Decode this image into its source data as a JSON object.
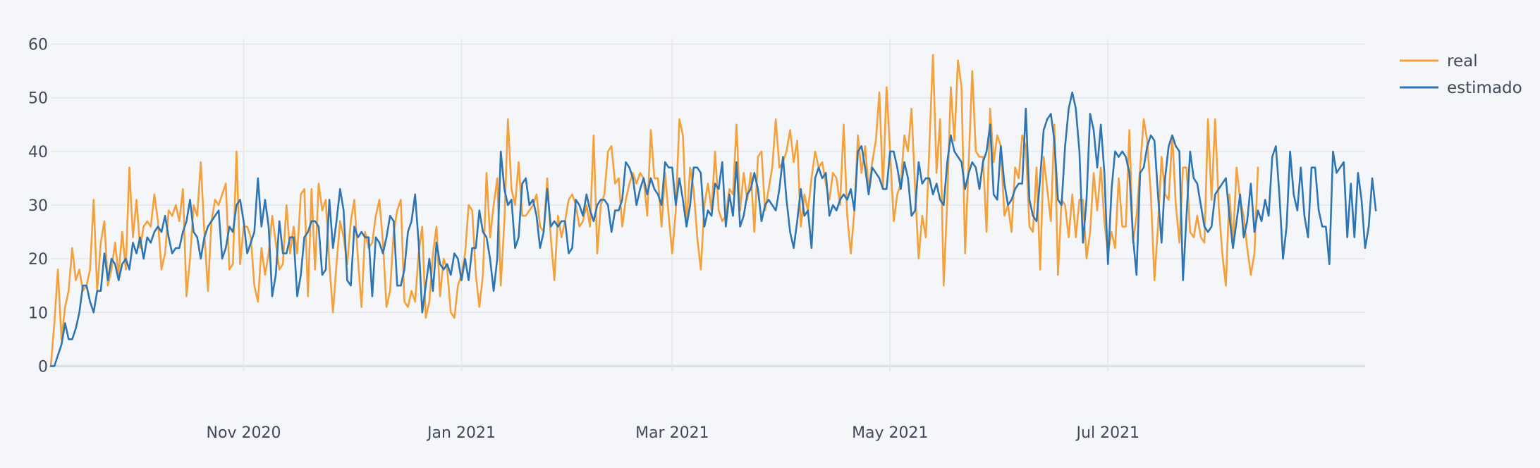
{
  "chart_data": {
    "type": "line",
    "title": "",
    "xlabel": "",
    "ylabel": "",
    "x_range": [
      "2020-09-08",
      "2021-09-11"
    ],
    "ylim": [
      -1,
      61
    ],
    "y_ticks": [
      0,
      10,
      20,
      30,
      40,
      50,
      60
    ],
    "x_ticks": [
      {
        "date": "2020-11-01",
        "label": "Nov 2020"
      },
      {
        "date": "2021-01-01",
        "label": "Jan 2021"
      },
      {
        "date": "2021-03-01",
        "label": "Mar 2021"
      },
      {
        "date": "2021-05-01",
        "label": "May 2021"
      },
      {
        "date": "2021-07-01",
        "label": "Jul 2021"
      }
    ],
    "grid": true,
    "legend_position": "top-right",
    "x_start": "2020-09-08",
    "x_step_days": 1,
    "series": [
      {
        "name": "real",
        "color": "#f5a13b",
        "values": [
          0,
          8,
          18,
          5,
          11,
          14,
          22,
          16,
          18,
          14,
          15,
          18,
          31,
          14,
          23,
          27,
          15,
          18,
          23,
          17,
          25,
          18,
          37,
          24,
          31,
          22,
          26,
          27,
          26,
          32,
          27,
          18,
          21,
          29,
          28,
          30,
          27,
          33,
          13,
          20,
          30,
          28,
          38,
          25,
          14,
          27,
          31,
          30,
          32,
          34,
          18,
          19,
          40,
          19,
          26,
          26,
          24,
          15,
          12,
          22,
          17,
          21,
          28,
          23,
          18,
          19,
          30,
          21,
          26,
          21,
          32,
          33,
          13,
          33,
          18,
          34,
          29,
          31,
          19,
          10,
          19,
          27,
          24,
          19,
          27,
          31,
          20,
          11,
          25,
          22,
          23,
          28,
          31,
          23,
          11,
          14,
          25,
          29,
          31,
          12,
          11,
          14,
          12,
          21,
          26,
          9,
          12,
          21,
          26,
          13,
          20,
          18,
          10,
          9,
          15,
          17,
          21,
          30,
          29,
          17,
          11,
          17,
          36,
          24,
          30,
          35,
          15,
          27,
          46,
          33,
          30,
          38,
          28,
          28,
          29,
          30,
          32,
          26,
          25,
          35,
          24,
          16,
          28,
          24,
          27,
          31,
          32,
          30,
          26,
          27,
          30,
          26,
          43,
          21,
          30,
          32,
          40,
          41,
          34,
          35,
          26,
          31,
          34,
          36,
          34,
          36,
          35,
          28,
          44,
          35,
          35,
          26,
          36,
          28,
          21,
          29,
          46,
          43,
          26,
          37,
          33,
          24,
          18,
          30,
          34,
          29,
          40,
          29,
          27,
          28,
          33,
          32,
          45,
          29,
          36,
          31,
          36,
          25,
          39,
          40,
          29,
          33,
          37,
          46,
          37,
          38,
          40,
          44,
          38,
          42,
          26,
          32,
          29,
          35,
          40,
          37,
          38,
          34,
          31,
          36,
          35,
          30,
          45,
          28,
          21,
          29,
          43,
          36,
          41,
          33,
          38,
          42,
          51,
          33,
          52,
          40,
          27,
          32,
          34,
          43,
          40,
          48,
          33,
          20,
          28,
          24,
          41,
          58,
          36,
          46,
          15,
          31,
          52,
          42,
          57,
          52,
          21,
          38,
          55,
          40,
          39,
          39,
          25,
          48,
          38,
          43,
          41,
          28,
          30,
          25,
          37,
          35,
          43,
          41,
          26,
          25,
          37,
          18,
          39,
          33,
          27,
          45,
          17,
          31,
          30,
          24,
          32,
          24,
          31,
          31,
          20,
          25,
          36,
          29,
          37,
          27,
          21,
          25,
          22,
          35,
          26,
          26,
          44,
          23,
          28,
          37,
          46,
          42,
          32,
          16,
          26,
          39,
          32,
          31,
          43,
          30,
          23,
          37,
          37,
          25,
          24,
          28,
          24,
          23,
          46,
          31,
          46,
          30,
          21,
          15,
          32,
          23,
          37,
          31,
          28,
          22,
          17,
          21,
          37
        ]
      },
      {
        "name": "estimado",
        "color": "#2e75b3",
        "values": [
          0,
          0,
          2,
          4,
          8,
          5,
          5,
          7,
          10,
          15,
          15,
          12,
          10,
          14,
          14,
          21,
          16,
          20,
          19,
          16,
          19,
          20,
          18,
          23,
          21,
          24,
          20,
          24,
          23,
          25,
          26,
          25,
          28,
          24,
          21,
          22,
          22,
          25,
          27,
          31,
          25,
          24,
          20,
          24,
          26,
          27,
          28,
          29,
          20,
          22,
          26,
          25,
          30,
          31,
          27,
          21,
          23,
          25,
          35,
          26,
          31,
          26,
          13,
          17,
          27,
          21,
          21,
          24,
          24,
          13,
          17,
          24,
          25,
          27,
          27,
          26,
          17,
          18,
          31,
          22,
          27,
          33,
          29,
          16,
          15,
          26,
          24,
          25,
          24,
          24,
          13,
          24,
          23,
          21,
          24,
          28,
          27,
          15,
          15,
          18,
          25,
          27,
          32,
          23,
          10,
          15,
          20,
          14,
          23,
          19,
          18,
          19,
          17,
          21,
          20,
          16,
          20,
          16,
          22,
          22,
          29,
          25,
          24,
          20,
          14,
          20,
          40,
          33,
          30,
          31,
          22,
          24,
          34,
          35,
          30,
          31,
          28,
          22,
          25,
          33,
          26,
          27,
          26,
          27,
          27,
          21,
          22,
          31,
          30,
          28,
          32,
          29,
          27,
          30,
          31,
          31,
          30,
          25,
          29,
          29,
          31,
          38,
          37,
          35,
          30,
          33,
          35,
          32,
          35,
          33,
          32,
          30,
          38,
          37,
          37,
          30,
          35,
          31,
          26,
          30,
          37,
          37,
          36,
          26,
          29,
          28,
          34,
          33,
          38,
          26,
          32,
          28,
          38,
          26,
          28,
          32,
          33,
          36,
          33,
          27,
          30,
          31,
          30,
          29,
          33,
          39,
          31,
          25,
          22,
          27,
          33,
          28,
          29,
          22,
          35,
          37,
          35,
          36,
          28,
          30,
          29,
          31,
          32,
          31,
          33,
          29,
          40,
          41,
          37,
          32,
          37,
          36,
          35,
          33,
          33,
          40,
          40,
          37,
          33,
          38,
          35,
          28,
          29,
          38,
          34,
          35,
          35,
          32,
          34,
          31,
          30,
          38,
          43,
          40,
          39,
          38,
          33,
          36,
          38,
          37,
          33,
          38,
          40,
          45,
          32,
          31,
          41,
          34,
          30,
          31,
          33,
          34,
          34,
          48,
          31,
          28,
          27,
          35,
          44,
          46,
          47,
          42,
          31,
          30,
          41,
          48,
          51,
          48,
          40,
          23,
          31,
          47,
          44,
          37,
          45,
          36,
          19,
          33,
          40,
          39,
          40,
          39,
          36,
          24,
          17,
          36,
          37,
          41,
          43,
          42,
          32,
          23,
          35,
          41,
          43,
          41,
          40,
          16,
          28,
          40,
          35,
          34,
          30,
          26,
          25,
          26,
          32,
          33,
          34,
          35,
          28,
          22,
          27,
          32,
          24,
          27,
          34,
          25,
          29,
          27,
          31,
          28,
          39,
          41,
          32,
          20,
          26,
          40,
          32,
          29,
          37,
          28,
          24,
          37,
          37,
          29,
          26,
          26,
          19,
          40,
          36,
          37,
          38,
          24,
          34,
          24,
          36,
          31,
          22,
          26,
          35,
          29
        ]
      }
    ]
  }
}
